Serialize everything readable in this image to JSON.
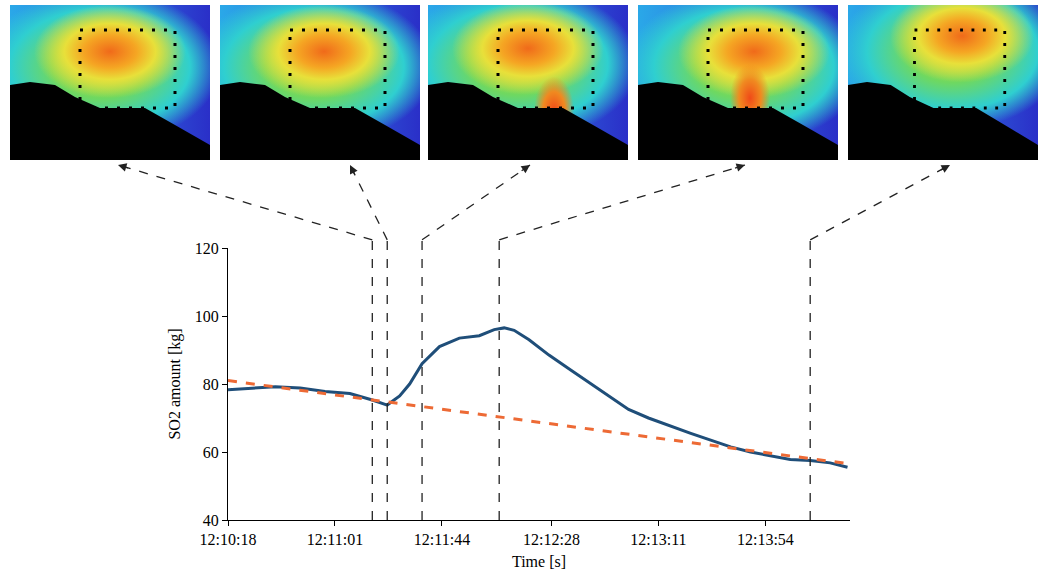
{
  "chart_data": {
    "type": "line",
    "x_label": "Time [s]",
    "y_label": "SO2 amount [kg]",
    "series": [
      {
        "color": "#1f4e79",
        "line_style": "solid",
        "x": [
          43818,
          43827,
          43837,
          43847,
          43857,
          43867,
          43876,
          43882,
          43887,
          43891,
          43896,
          43903,
          43911,
          43919,
          43925,
          43929,
          43933,
          43939,
          43947,
          43955,
          43963,
          43971,
          43979,
          43987,
          43996,
          44004,
          44012,
          44020,
          44028,
          44036,
          44044,
          44052,
          44060,
          44067
        ],
        "values": [
          78.3,
          78.8,
          79.2,
          78.8,
          77.8,
          77.2,
          75.3,
          73.8,
          76.5,
          80,
          86,
          91,
          93.5,
          94.2,
          96,
          96.5,
          95.8,
          93,
          88.5,
          84.5,
          80.5,
          76.5,
          72.5,
          70,
          67.5,
          65.5,
          63.5,
          61.5,
          60,
          58.8,
          57.8,
          57.5,
          56.8,
          55.5
        ]
      },
      {
        "color": "#ed6a35",
        "line_style": "dash",
        "x": [
          43818,
          44068
        ],
        "values": [
          81,
          56.5
        ]
      }
    ],
    "vlines": [
      43876,
      43882,
      43896,
      43927,
      44052
    ],
    "xlim": [
      43818,
      44068
    ],
    "xticks": [
      {
        "value": 43818,
        "label": "12:10:18"
      },
      {
        "value": 43861,
        "label": "12:11:01"
      },
      {
        "value": 43904,
        "label": "12:11:44"
      },
      {
        "value": 43948,
        "label": "12:12:28"
      },
      {
        "value": 43991,
        "label": "12:13:11"
      },
      {
        "value": 44034,
        "label": "12:13:54"
      }
    ],
    "ylim": [
      40,
      120
    ],
    "yticks": [
      40,
      60,
      80,
      100,
      120
    ],
    "grid": false
  }
}
